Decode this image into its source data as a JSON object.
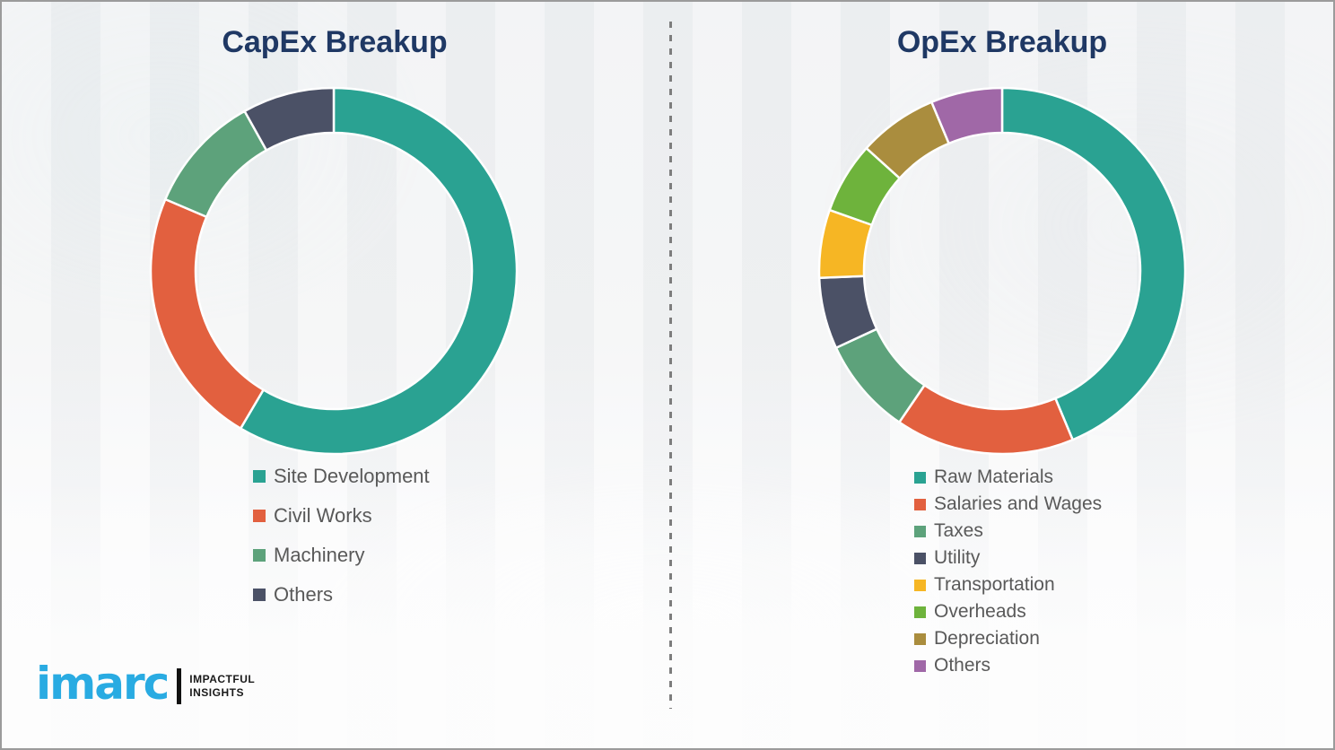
{
  "page": {
    "background_color": "#f1f2f3",
    "border_color": "#9b9b9b",
    "divider_color": "#7d7d7d",
    "title_color": "#1f3864",
    "legend_text_color": "#595959"
  },
  "chart_data": [
    {
      "type": "pie",
      "subtype": "donut",
      "title": "CapEx Breakup",
      "legend_position": "below",
      "start_angle_deg": 0,
      "direction": "clockwise",
      "segments": [
        {
          "label": "Site Development",
          "color": "#2aa292",
          "percent": 58.5
        },
        {
          "label": "Civil Works",
          "color": "#e2603f",
          "percent": 22.9
        },
        {
          "label": "Machinery",
          "color": "#5da27b",
          "percent": 10.5
        },
        {
          "label": "Others",
          "color": "#4b5166",
          "percent": 8.1
        }
      ]
    },
    {
      "type": "pie",
      "subtype": "donut",
      "title": "OpEx Breakup",
      "legend_position": "below",
      "start_angle_deg": 0,
      "direction": "clockwise",
      "segments": [
        {
          "label": "Raw Materials",
          "color": "#2aa292",
          "percent": 43.7
        },
        {
          "label": "Salaries and Wages",
          "color": "#e2603f",
          "percent": 15.8
        },
        {
          "label": "Taxes",
          "color": "#5da27b",
          "percent": 8.6
        },
        {
          "label": "Utility",
          "color": "#4b5166",
          "percent": 6.3
        },
        {
          "label": "Transportation",
          "color": "#f6b624",
          "percent": 6.0
        },
        {
          "label": "Overheads",
          "color": "#6eb33c",
          "percent": 6.3
        },
        {
          "label": "Depreciation",
          "color": "#aa8d3e",
          "percent": 7.0
        },
        {
          "label": "Others",
          "color": "#a068a7",
          "percent": 6.3
        }
      ]
    }
  ],
  "logo": {
    "brand": "imarc",
    "brand_color": "#29abe2",
    "tagline_line1": "IMPACTFUL",
    "tagline_line2": "INSIGHTS"
  }
}
